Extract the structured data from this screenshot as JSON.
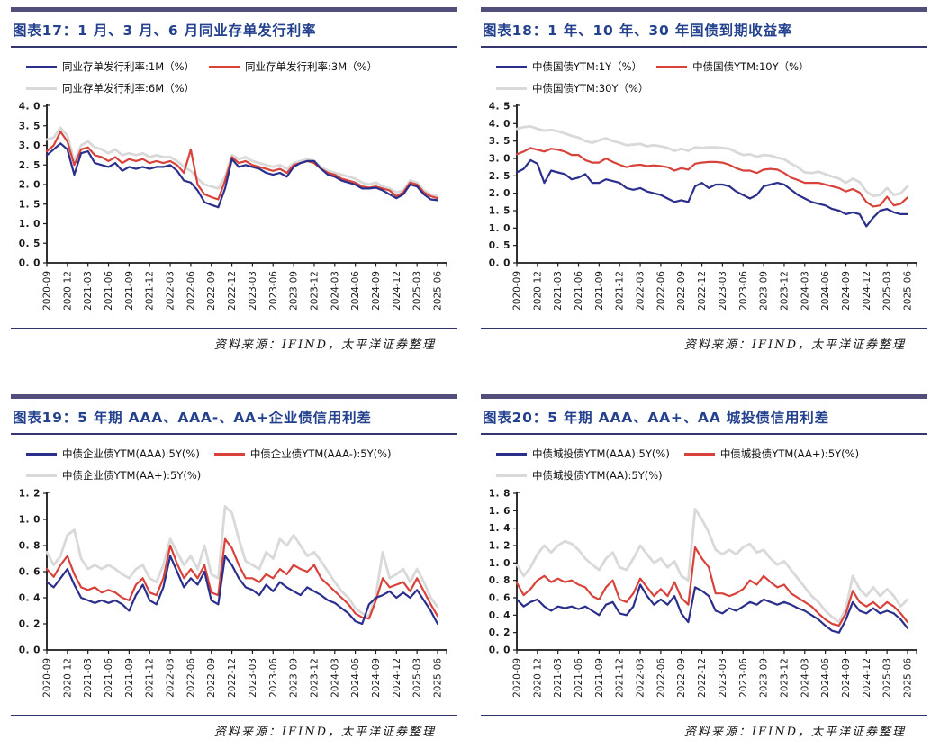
{
  "page": {
    "background": "#ffffff"
  },
  "colors": {
    "navy": "#2b2f8c",
    "red": "#d8423a",
    "gray": "#d9d9d9",
    "title_blue": "#24418e",
    "bar_purple": "#514e7c",
    "rule_navy": "#34366f",
    "axis_black": "#1a1a1a"
  },
  "x_axis": {
    "labels": [
      "2020-09",
      "2020-12",
      "2021-03",
      "2021-06",
      "2021-09",
      "2021-12",
      "2022-03",
      "2022-06",
      "2022-09",
      "2022-12",
      "2023-03",
      "2023-06",
      "2023-09",
      "2023-12",
      "2024-03",
      "2024-06",
      "2024-09",
      "2024-12",
      "2025-03",
      "2025-06"
    ],
    "start": "2020-09",
    "freq": "monthly",
    "tick_every_n_points": 3
  },
  "chart_data": [
    {
      "type": "line",
      "title": "图表17：1 月、3 月、6 月同业存单发行利率",
      "source": "资料来源：IFIND，太平洋证券整理",
      "ylim": [
        0.0,
        4.0
      ],
      "y_ticks": [
        0.0,
        0.5,
        1.0,
        1.5,
        2.0,
        2.5,
        3.0,
        3.5,
        4.0
      ],
      "y_labels": [
        "0. 0",
        "0. 5",
        "1. 0",
        "1. 5",
        "2. 0",
        "2. 5",
        "3. 0",
        "3. 5",
        "4. 0"
      ],
      "xlabel": "",
      "ylabel": "",
      "grid": false,
      "legend_position": "top",
      "series": [
        {
          "name": "同业存单发行利率:1M（%）",
          "color_key": "navy",
          "values": [
            2.75,
            2.9,
            3.05,
            2.9,
            2.25,
            2.8,
            2.85,
            2.55,
            2.5,
            2.45,
            2.55,
            2.35,
            2.45,
            2.4,
            2.45,
            2.4,
            2.45,
            2.45,
            2.5,
            2.35,
            2.1,
            2.05,
            1.85,
            1.55,
            1.48,
            1.42,
            1.9,
            2.65,
            2.45,
            2.5,
            2.45,
            2.4,
            2.3,
            2.25,
            2.3,
            2.2,
            2.45,
            2.55,
            2.6,
            2.6,
            2.4,
            2.25,
            2.2,
            2.1,
            2.05,
            2.0,
            1.9,
            1.9,
            1.92,
            1.85,
            1.75,
            1.65,
            1.75,
            2.0,
            1.95,
            1.75,
            1.62,
            1.6
          ]
        },
        {
          "name": "同业存单发行利率:3M（%）",
          "color_key": "red",
          "values": [
            2.85,
            3.0,
            3.35,
            3.1,
            2.5,
            2.9,
            2.95,
            2.75,
            2.7,
            2.6,
            2.7,
            2.55,
            2.65,
            2.6,
            2.65,
            2.55,
            2.6,
            2.55,
            2.6,
            2.5,
            2.3,
            2.9,
            2.0,
            1.75,
            1.68,
            1.62,
            2.1,
            2.7,
            2.55,
            2.6,
            2.5,
            2.45,
            2.4,
            2.35,
            2.4,
            2.3,
            2.5,
            2.55,
            2.6,
            2.55,
            2.4,
            2.3,
            2.25,
            2.15,
            2.1,
            2.05,
            1.95,
            1.92,
            1.95,
            1.9,
            1.85,
            1.7,
            1.8,
            2.05,
            2.0,
            1.8,
            1.7,
            1.65
          ]
        },
        {
          "name": "同业存单发行利率:6M（%）",
          "color_key": "gray",
          "values": [
            3.15,
            3.2,
            3.45,
            3.25,
            2.6,
            3.0,
            3.1,
            2.95,
            2.9,
            2.8,
            2.9,
            2.75,
            2.8,
            2.75,
            2.8,
            2.7,
            2.75,
            2.7,
            2.7,
            2.6,
            2.45,
            2.35,
            2.15,
            2.0,
            1.95,
            1.9,
            2.2,
            2.75,
            2.65,
            2.7,
            2.6,
            2.55,
            2.5,
            2.45,
            2.5,
            2.4,
            2.55,
            2.6,
            2.65,
            2.6,
            2.45,
            2.35,
            2.3,
            2.25,
            2.2,
            2.15,
            2.05,
            2.0,
            2.05,
            1.95,
            1.9,
            1.8,
            1.85,
            2.1,
            2.05,
            1.85,
            1.75,
            1.7
          ]
        }
      ]
    },
    {
      "type": "line",
      "title": "图表18：1 年、10 年、30 年国债到期收益率",
      "source": "资料来源：IFIND，太平洋证券整理",
      "ylim": [
        0.0,
        4.5
      ],
      "y_ticks": [
        0.0,
        0.5,
        1.0,
        1.5,
        2.0,
        2.5,
        3.0,
        3.5,
        4.0,
        4.5
      ],
      "y_labels": [
        "0. 0",
        "0. 5",
        "1. 0",
        "1. 5",
        "2. 0",
        "2. 5",
        "3. 0",
        "3. 5",
        "4. 0",
        "4. 5"
      ],
      "xlabel": "",
      "ylabel": "",
      "grid": false,
      "legend_position": "top",
      "series": [
        {
          "name": "中债国债YTM:1Y（%）",
          "color_key": "navy",
          "values": [
            2.6,
            2.7,
            2.95,
            2.85,
            2.3,
            2.65,
            2.6,
            2.55,
            2.4,
            2.45,
            2.55,
            2.3,
            2.3,
            2.4,
            2.35,
            2.3,
            2.15,
            2.1,
            2.15,
            2.05,
            2.0,
            1.95,
            1.85,
            1.75,
            1.8,
            1.75,
            2.2,
            2.3,
            2.15,
            2.25,
            2.25,
            2.2,
            2.05,
            1.95,
            1.85,
            1.95,
            2.2,
            2.25,
            2.3,
            2.25,
            2.1,
            1.95,
            1.85,
            1.75,
            1.7,
            1.65,
            1.55,
            1.5,
            1.4,
            1.45,
            1.4,
            1.05,
            1.3,
            1.5,
            1.55,
            1.45,
            1.4,
            1.4
          ]
        },
        {
          "name": "中债国债YTM:10Y（%）",
          "color_key": "red",
          "values": [
            3.12,
            3.2,
            3.3,
            3.25,
            3.2,
            3.28,
            3.25,
            3.2,
            3.1,
            3.1,
            2.95,
            2.88,
            2.88,
            3.0,
            2.9,
            2.82,
            2.75,
            2.8,
            2.82,
            2.78,
            2.8,
            2.78,
            2.75,
            2.65,
            2.72,
            2.68,
            2.85,
            2.88,
            2.9,
            2.9,
            2.88,
            2.82,
            2.72,
            2.65,
            2.65,
            2.58,
            2.68,
            2.7,
            2.68,
            2.58,
            2.45,
            2.38,
            2.3,
            2.3,
            2.3,
            2.25,
            2.2,
            2.15,
            2.05,
            2.12,
            2.02,
            1.75,
            1.62,
            1.65,
            1.9,
            1.65,
            1.7,
            1.88
          ]
        },
        {
          "name": "中债国债YTM:30Y（%）",
          "color_key": "gray",
          "values": [
            3.85,
            3.9,
            3.92,
            3.85,
            3.8,
            3.82,
            3.78,
            3.72,
            3.65,
            3.6,
            3.5,
            3.45,
            3.52,
            3.58,
            3.5,
            3.45,
            3.38,
            3.4,
            3.42,
            3.35,
            3.38,
            3.35,
            3.3,
            3.22,
            3.28,
            3.22,
            3.32,
            3.3,
            3.32,
            3.32,
            3.3,
            3.28,
            3.18,
            3.1,
            3.12,
            3.05,
            3.1,
            3.08,
            3.02,
            2.98,
            2.85,
            2.75,
            2.6,
            2.58,
            2.62,
            2.55,
            2.48,
            2.42,
            2.3,
            2.42,
            2.32,
            2.05,
            1.92,
            1.95,
            2.15,
            1.95,
            2.0,
            2.2
          ]
        }
      ]
    },
    {
      "type": "line",
      "title": "图表19：5 年期 AAA、AAA-、AA+企业债信用利差",
      "source": "资料来源：IFIND，太平洋证券整理",
      "ylim": [
        0.0,
        1.2
      ],
      "y_ticks": [
        0.0,
        0.2,
        0.4,
        0.6,
        0.8,
        1.0,
        1.2
      ],
      "y_labels": [
        "0. 0",
        "0. 2",
        "0. 4",
        "0. 6",
        "0. 8",
        "1. 0",
        "1. 2"
      ],
      "xlabel": "",
      "ylabel": "",
      "grid": false,
      "legend_position": "top",
      "series": [
        {
          "name": "中债企业债YTM(AAA):5Y(%)",
          "color_key": "navy",
          "values": [
            0.52,
            0.48,
            0.55,
            0.62,
            0.5,
            0.4,
            0.38,
            0.36,
            0.38,
            0.36,
            0.38,
            0.35,
            0.3,
            0.42,
            0.5,
            0.38,
            0.35,
            0.48,
            0.72,
            0.6,
            0.48,
            0.55,
            0.5,
            0.6,
            0.38,
            0.35,
            0.72,
            0.65,
            0.55,
            0.48,
            0.46,
            0.42,
            0.5,
            0.45,
            0.52,
            0.48,
            0.45,
            0.42,
            0.48,
            0.45,
            0.42,
            0.38,
            0.36,
            0.32,
            0.28,
            0.22,
            0.2,
            0.35,
            0.4,
            0.42,
            0.45,
            0.4,
            0.44,
            0.4,
            0.46,
            0.38,
            0.3,
            0.2
          ]
        },
        {
          "name": "中债企业债YTM(AAA-):5Y(%)",
          "color_key": "red",
          "values": [
            0.62,
            0.56,
            0.65,
            0.72,
            0.58,
            0.48,
            0.46,
            0.48,
            0.44,
            0.46,
            0.44,
            0.4,
            0.38,
            0.5,
            0.55,
            0.44,
            0.42,
            0.55,
            0.8,
            0.66,
            0.55,
            0.62,
            0.55,
            0.65,
            0.44,
            0.42,
            0.85,
            0.78,
            0.65,
            0.55,
            0.55,
            0.52,
            0.58,
            0.55,
            0.62,
            0.58,
            0.65,
            0.62,
            0.6,
            0.65,
            0.55,
            0.5,
            0.45,
            0.4,
            0.35,
            0.28,
            0.25,
            0.24,
            0.38,
            0.55,
            0.48,
            0.5,
            0.52,
            0.45,
            0.55,
            0.45,
            0.35,
            0.26
          ]
        },
        {
          "name": "中债企业债YTM(AA+):5Y(%)",
          "color_key": "gray",
          "values": [
            0.75,
            0.65,
            0.72,
            0.88,
            0.92,
            0.7,
            0.62,
            0.65,
            0.62,
            0.65,
            0.62,
            0.58,
            0.55,
            0.62,
            0.65,
            0.55,
            0.52,
            0.65,
            0.85,
            0.75,
            0.65,
            0.72,
            0.62,
            0.8,
            0.58,
            0.55,
            1.1,
            1.05,
            0.85,
            0.68,
            0.65,
            0.62,
            0.75,
            0.7,
            0.85,
            0.8,
            0.88,
            0.8,
            0.72,
            0.75,
            0.68,
            0.6,
            0.52,
            0.45,
            0.4,
            0.32,
            0.28,
            0.26,
            0.42,
            0.75,
            0.55,
            0.58,
            0.62,
            0.52,
            0.62,
            0.52,
            0.4,
            0.33
          ]
        }
      ]
    },
    {
      "type": "line",
      "title": "图表20：5 年期 AAA、AA+、AA 城投债信用利差",
      "source": "资料来源：IFIND，太平洋证券整理",
      "ylim": [
        0.0,
        1.8
      ],
      "y_ticks": [
        0.0,
        0.2,
        0.4,
        0.6,
        0.8,
        1.0,
        1.2,
        1.4,
        1.6,
        1.8
      ],
      "y_labels": [
        "0. 0",
        "0. 2",
        "0. 4",
        "0. 6",
        "0. 8",
        "1. 0",
        "1. 2",
        "1. 4",
        "1. 6",
        "1. 8"
      ],
      "xlabel": "",
      "ylabel": "",
      "grid": false,
      "legend_position": "top",
      "series": [
        {
          "name": "中债城投债YTM(AAA):5Y(%)",
          "color_key": "navy",
          "values": [
            0.58,
            0.5,
            0.55,
            0.58,
            0.5,
            0.45,
            0.5,
            0.48,
            0.5,
            0.47,
            0.5,
            0.45,
            0.4,
            0.52,
            0.55,
            0.42,
            0.4,
            0.5,
            0.75,
            0.62,
            0.52,
            0.58,
            0.52,
            0.62,
            0.42,
            0.32,
            0.72,
            0.68,
            0.62,
            0.45,
            0.42,
            0.48,
            0.45,
            0.5,
            0.55,
            0.52,
            0.58,
            0.55,
            0.52,
            0.55,
            0.52,
            0.48,
            0.45,
            0.4,
            0.35,
            0.28,
            0.22,
            0.2,
            0.35,
            0.55,
            0.45,
            0.42,
            0.48,
            0.42,
            0.45,
            0.42,
            0.35,
            0.25
          ]
        },
        {
          "name": "中债城投债YTM(AA+):5Y(%)",
          "color_key": "red",
          "values": [
            0.77,
            0.63,
            0.7,
            0.8,
            0.85,
            0.78,
            0.82,
            0.78,
            0.8,
            0.75,
            0.72,
            0.62,
            0.58,
            0.72,
            0.8,
            0.58,
            0.55,
            0.65,
            0.82,
            0.72,
            0.62,
            0.7,
            0.62,
            0.78,
            0.6,
            0.52,
            1.18,
            1.05,
            0.95,
            0.65,
            0.65,
            0.62,
            0.65,
            0.7,
            0.8,
            0.75,
            0.85,
            0.78,
            0.72,
            0.75,
            0.65,
            0.6,
            0.55,
            0.5,
            0.42,
            0.35,
            0.3,
            0.28,
            0.42,
            0.68,
            0.55,
            0.5,
            0.55,
            0.48,
            0.55,
            0.5,
            0.42,
            0.32
          ]
        },
        {
          "name": "中债城投债YTM(AA):5Y(%)",
          "color_key": "gray",
          "values": [
            0.98,
            0.85,
            0.95,
            1.1,
            1.2,
            1.12,
            1.2,
            1.25,
            1.22,
            1.15,
            1.05,
            0.98,
            0.92,
            1.05,
            1.12,
            0.95,
            0.92,
            1.05,
            1.2,
            1.1,
            1.0,
            1.05,
            0.95,
            1.02,
            0.85,
            0.8,
            1.62,
            1.5,
            1.35,
            1.15,
            1.1,
            1.15,
            1.1,
            1.18,
            1.22,
            1.12,
            1.15,
            1.05,
            0.98,
            1.02,
            0.92,
            0.82,
            0.72,
            0.62,
            0.55,
            0.45,
            0.38,
            0.32,
            0.48,
            0.85,
            0.7,
            0.62,
            0.72,
            0.62,
            0.7,
            0.62,
            0.5,
            0.58
          ]
        }
      ]
    }
  ]
}
